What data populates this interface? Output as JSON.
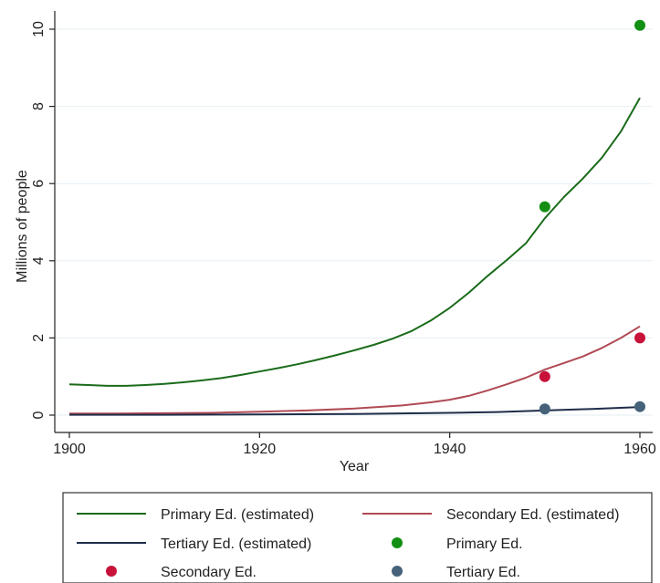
{
  "chart_data": {
    "type": "line",
    "xlabel": "Year",
    "ylabel": "Millions of people",
    "xlim": [
      1900,
      1961
    ],
    "ylim": [
      -0.45,
      10.45
    ],
    "x_ticks": [
      1900,
      1920,
      1940,
      1960
    ],
    "y_ticks": [
      0,
      2,
      4,
      6,
      8,
      10
    ],
    "grid": "horizontal",
    "legend_position": "bottom",
    "series": [
      {
        "name": "Primary Ed. (estimated)",
        "kind": "line",
        "color": "#1a6b1a",
        "x": [
          1900,
          1902,
          1904,
          1906,
          1908,
          1910,
          1912,
          1914,
          1916,
          1918,
          1920,
          1922,
          1924,
          1926,
          1928,
          1930,
          1932,
          1934,
          1936,
          1938,
          1940,
          1942,
          1944,
          1946,
          1948,
          1950,
          1952,
          1954,
          1956,
          1958,
          1960
        ],
        "y": [
          0.8,
          0.78,
          0.76,
          0.76,
          0.78,
          0.81,
          0.85,
          0.9,
          0.96,
          1.04,
          1.13,
          1.22,
          1.32,
          1.43,
          1.55,
          1.68,
          1.82,
          1.98,
          2.18,
          2.45,
          2.78,
          3.17,
          3.61,
          4.02,
          4.45,
          5.1,
          5.65,
          6.13,
          6.67,
          7.35,
          8.22
        ]
      },
      {
        "name": "Secondary Ed. (estimated)",
        "kind": "line",
        "color": "#b04a55",
        "x": [
          1900,
          1905,
          1910,
          1915,
          1920,
          1925,
          1930,
          1935,
          1938,
          1940,
          1942,
          1944,
          1946,
          1948,
          1950,
          1952,
          1954,
          1956,
          1958,
          1960
        ],
        "y": [
          0.04,
          0.04,
          0.05,
          0.06,
          0.09,
          0.12,
          0.17,
          0.25,
          0.33,
          0.4,
          0.5,
          0.64,
          0.8,
          0.97,
          1.18,
          1.35,
          1.52,
          1.74,
          2.0,
          2.3
        ]
      },
      {
        "name": "Tertiary Ed. (estimated)",
        "kind": "line",
        "color": "#1f2d4a",
        "x": [
          1900,
          1910,
          1920,
          1930,
          1940,
          1945,
          1950,
          1955,
          1960
        ],
        "y": [
          0.01,
          0.01,
          0.02,
          0.03,
          0.06,
          0.08,
          0.12,
          0.16,
          0.21
        ]
      },
      {
        "name": "Primary Ed.",
        "kind": "scatter",
        "color": "#138f13",
        "x": [
          1950,
          1960
        ],
        "y": [
          5.4,
          10.1
        ]
      },
      {
        "name": "Secondary Ed.",
        "kind": "scatter",
        "color": "#c8123a",
        "x": [
          1950,
          1960
        ],
        "y": [
          1.0,
          2.0
        ]
      },
      {
        "name": "Tertiary Ed.",
        "kind": "scatter",
        "color": "#45627a",
        "x": [
          1950,
          1960
        ],
        "y": [
          0.16,
          0.22
        ]
      }
    ]
  }
}
